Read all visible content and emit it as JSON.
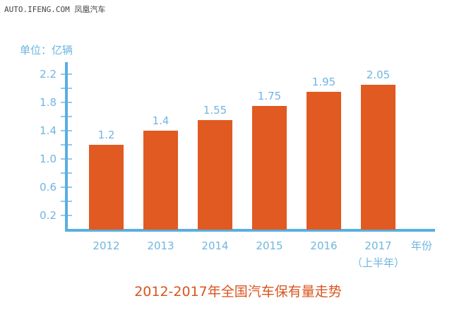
{
  "watermark": "AUTO.IFENG.COM 凤凰汽车",
  "colors": {
    "bar": "#e05a22",
    "axis": "#5aaedf",
    "label": "#6fb6e0",
    "title": "#d9541e"
  },
  "chart_data": {
    "type": "bar",
    "title": "2012-2017年全国汽车保有量走势",
    "ylabel": "单位：亿辆",
    "xlabel": "年份",
    "categories": [
      "2012",
      "2013",
      "2014",
      "2015",
      "2016",
      "2017"
    ],
    "category_sublabels": [
      "",
      "",
      "",
      "",
      "",
      "（上半年）"
    ],
    "values": [
      1.2,
      1.4,
      1.55,
      1.75,
      1.95,
      2.05
    ],
    "data_labels": [
      "1.2",
      "1.4",
      "1.55",
      "1.75",
      "1.95",
      "2.05"
    ],
    "yticks": [
      "0.2",
      "0.6",
      "1.0",
      "1.4",
      "1.8",
      "2.2"
    ],
    "ylim": [
      0,
      2.4
    ],
    "grid": false,
    "legend": "none"
  }
}
